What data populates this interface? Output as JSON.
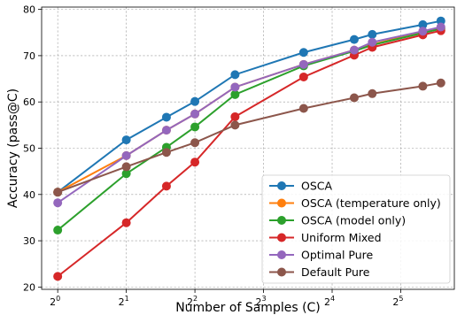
{
  "chart_data": {
    "type": "line",
    "title": "",
    "xlabel": "Number of Samples (C)",
    "ylabel": "Accuracy (pass@C)",
    "x_scale": "log2",
    "xlim": [
      0.85,
      55
    ],
    "ylim": [
      19.5,
      80.5
    ],
    "x_ticks": [
      {
        "value": 1,
        "base": "2",
        "exp": "0"
      },
      {
        "value": 2,
        "base": "2",
        "exp": "1"
      },
      {
        "value": 4,
        "base": "2",
        "exp": "2"
      },
      {
        "value": 8,
        "base": "2",
        "exp": "3"
      },
      {
        "value": 16,
        "base": "2",
        "exp": "4"
      },
      {
        "value": 32,
        "base": "2",
        "exp": "5"
      }
    ],
    "y_ticks": [
      20,
      30,
      40,
      50,
      60,
      70,
      80
    ],
    "grid": true,
    "legend_position": "bottom-right",
    "x": [
      1,
      2,
      3,
      4,
      6,
      12,
      20,
      24,
      40,
      48
    ],
    "series": [
      {
        "name": "OSCA",
        "color": "#1f77b4",
        "values": [
          40.5,
          51.8,
          56.7,
          60.1,
          65.9,
          70.7,
          73.5,
          74.6,
          76.7,
          77.5
        ]
      },
      {
        "name": "OSCA (temperature only)",
        "color": "#ff7f0e",
        "values": [
          40.5,
          48.4,
          53.9,
          57.4,
          63.2,
          68.1,
          71.2,
          72.4,
          75.2,
          76.1
        ]
      },
      {
        "name": "OSCA (model only)",
        "color": "#2ca02c",
        "values": [
          32.3,
          44.5,
          50.2,
          54.6,
          61.6,
          67.8,
          71.0,
          72.3,
          74.9,
          75.8
        ]
      },
      {
        "name": "Uniform Mixed",
        "color": "#d62728",
        "values": [
          22.3,
          33.9,
          41.8,
          47.0,
          56.8,
          65.4,
          70.1,
          71.8,
          74.5,
          75.4
        ]
      },
      {
        "name": "Optimal Pure",
        "color": "#9467bd",
        "values": [
          38.2,
          48.4,
          53.9,
          57.4,
          63.2,
          68.1,
          71.2,
          72.9,
          75.3,
          76.2
        ]
      },
      {
        "name": "Default Pure",
        "color": "#8c564b",
        "values": [
          40.5,
          46.0,
          49.1,
          51.2,
          55.0,
          58.6,
          60.9,
          61.8,
          63.4,
          64.1
        ]
      }
    ]
  }
}
